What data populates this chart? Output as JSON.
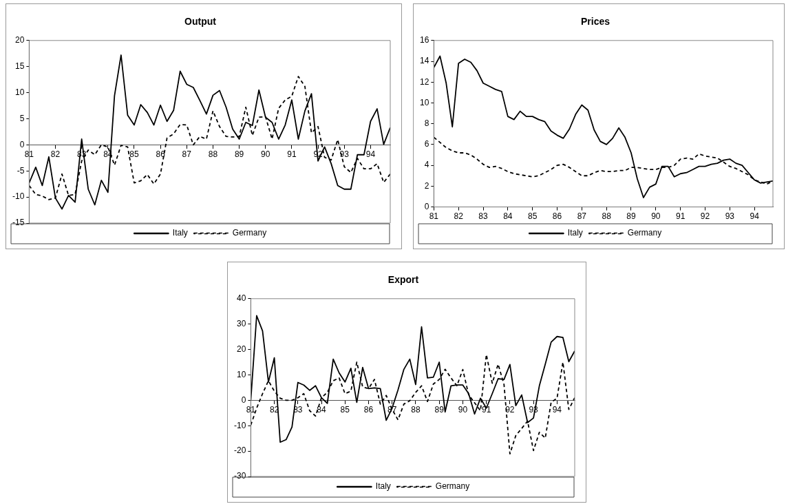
{
  "chart_data": [
    {
      "type": "line",
      "title": "Output",
      "x": [
        81,
        81.25,
        81.5,
        81.75,
        82,
        82.25,
        82.5,
        82.75,
        83,
        83.25,
        83.5,
        83.75,
        84,
        84.25,
        84.5,
        84.75,
        85,
        85.25,
        85.5,
        85.75,
        86,
        86.25,
        86.5,
        86.75,
        87,
        87.25,
        87.5,
        87.75,
        88,
        88.25,
        88.5,
        88.75,
        89,
        89.25,
        89.5,
        89.75,
        90,
        90.25,
        90.5,
        90.75,
        91,
        91.25,
        91.5,
        91.75,
        92,
        92.25,
        92.5,
        92.75,
        93,
        93.25,
        93.5,
        93.75,
        94,
        94.25,
        94.5,
        94.75
      ],
      "xlim": [
        81,
        94.75
      ],
      "xticks": [
        81,
        82,
        83,
        84,
        85,
        86,
        87,
        88,
        89,
        90,
        91,
        92,
        93,
        94
      ],
      "ylim": [
        -15,
        20
      ],
      "yticks": [
        -15,
        -10,
        -5,
        0,
        5,
        10,
        15,
        20
      ],
      "grid": false,
      "legend": "bottom",
      "marker": "none",
      "series": [
        {
          "name": "Italy",
          "color": "#000000",
          "line_style": "solid",
          "values": [
            -7.3,
            -4.3,
            -7.8,
            -2.3,
            -10.2,
            -12.3,
            -9.7,
            -11,
            1.1,
            -8.5,
            -11.5,
            -6.8,
            -9.1,
            9.4,
            17.2,
            5.7,
            3.8,
            7.7,
            6.2,
            3.8,
            7.6,
            4.5,
            6.6,
            14.1,
            11.6,
            11,
            8.5,
            5.9,
            9.5,
            10.4,
            7.2,
            3.0,
            1.1,
            4.3,
            3.7,
            10.5,
            5.3,
            4.3,
            1.1,
            3.8,
            8.6,
            1.1,
            6.5,
            9.8,
            -3.1,
            -0.4,
            -3.6,
            -7.8,
            -8.5,
            -8.5,
            -1.9,
            -1.9,
            4.5,
            6.9,
            0.1,
            3.3
          ]
        },
        {
          "name": "Germany",
          "color": "#000000",
          "line_style": "dashed",
          "values": [
            -7.8,
            -9.5,
            -9.8,
            -10.5,
            -10.2,
            -5.6,
            -9.7,
            -9.5,
            -3.1,
            -1,
            -1.9,
            0,
            -0.4,
            -3.9,
            -0.1,
            -0.4,
            -7.3,
            -6.9,
            -5.7,
            -7.5,
            -5.6,
            1.3,
            2.1,
            3.9,
            3.8,
            0,
            1.6,
            1.1,
            6.5,
            3.5,
            1.6,
            1.5,
            1.6,
            7.2,
            1.8,
            5.3,
            5.4,
            1.1,
            7.0,
            8.6,
            9.3,
            13.1,
            11.2,
            2.3,
            3.5,
            -2.4,
            -2.9,
            1.0,
            -4.2,
            -5.3,
            -2.6,
            -4.6,
            -4.6,
            -3.6,
            -7.2,
            -5.6
          ]
        }
      ]
    },
    {
      "type": "line",
      "title": "Prices",
      "x": [
        81,
        81.25,
        81.5,
        81.75,
        82,
        82.25,
        82.5,
        82.75,
        83,
        83.25,
        83.5,
        83.75,
        84,
        84.25,
        84.5,
        84.75,
        85,
        85.25,
        85.5,
        85.75,
        86,
        86.25,
        86.5,
        86.75,
        87,
        87.25,
        87.5,
        87.75,
        88,
        88.25,
        88.5,
        88.75,
        89,
        89.25,
        89.5,
        89.75,
        90,
        90.25,
        90.5,
        90.75,
        91,
        91.25,
        91.5,
        91.75,
        92,
        92.25,
        92.5,
        92.75,
        93,
        93.25,
        93.5,
        93.75,
        94,
        94.25,
        94.5,
        94.75
      ],
      "xlim": [
        81,
        94.75
      ],
      "xticks": [
        81,
        82,
        83,
        84,
        85,
        86,
        87,
        88,
        89,
        90,
        91,
        92,
        93,
        94
      ],
      "ylim": [
        0,
        16
      ],
      "yticks": [
        0,
        2,
        4,
        6,
        8,
        10,
        12,
        14,
        16
      ],
      "grid": false,
      "legend": "bottom",
      "marker": "none",
      "series": [
        {
          "name": "Italy",
          "color": "#000000",
          "line_style": "solid",
          "values": [
            13.4,
            14.5,
            11.9,
            7.7,
            13.8,
            14.2,
            13.9,
            13.1,
            11.9,
            11.6,
            11.3,
            11.1,
            8.7,
            8.4,
            9.2,
            8.7,
            8.7,
            8.4,
            8.2,
            7.3,
            6.9,
            6.6,
            7.5,
            8.9,
            9.8,
            9.3,
            7.4,
            6.3,
            6.0,
            6.6,
            7.6,
            6.7,
            5.2,
            2.7,
            0.9,
            1.9,
            2.2,
            3.9,
            3.9,
            2.9,
            3.2,
            3.3,
            3.6,
            3.9,
            3.9,
            4.1,
            4.2,
            4.5,
            4.6,
            4.2,
            4.0,
            3.3,
            2.6,
            2.3,
            2.4,
            2.5
          ]
        },
        {
          "name": "Germany",
          "color": "#000000",
          "line_style": "dashed",
          "values": [
            6.7,
            6.2,
            5.7,
            5.4,
            5.2,
            5.2,
            5.0,
            4.6,
            4.1,
            3.8,
            3.9,
            3.7,
            3.4,
            3.2,
            3.1,
            3.0,
            2.9,
            3.0,
            3.3,
            3.6,
            4.0,
            4.1,
            3.8,
            3.4,
            3.0,
            3.0,
            3.3,
            3.5,
            3.4,
            3.4,
            3.5,
            3.5,
            3.8,
            3.8,
            3.7,
            3.6,
            3.6,
            3.8,
            3.8,
            4.0,
            4.6,
            4.7,
            4.6,
            5.1,
            4.9,
            4.8,
            4.7,
            4.3,
            3.9,
            3.7,
            3.4,
            3.1,
            2.6,
            2.4,
            2.2,
            2.5
          ]
        }
      ]
    },
    {
      "type": "line",
      "title": "Export",
      "x": [
        81,
        81.25,
        81.5,
        81.75,
        82,
        82.25,
        82.5,
        82.75,
        83,
        83.25,
        83.5,
        83.75,
        84,
        84.25,
        84.5,
        84.75,
        85,
        85.25,
        85.5,
        85.75,
        86,
        86.25,
        86.5,
        86.75,
        87,
        87.25,
        87.5,
        87.75,
        88,
        88.25,
        88.5,
        88.75,
        89,
        89.25,
        89.5,
        89.75,
        90,
        90.25,
        90.5,
        90.75,
        91,
        91.25,
        91.5,
        91.75,
        92,
        92.25,
        92.5,
        92.75,
        93,
        93.25,
        93.5,
        93.75,
        94,
        94.25,
        94.5,
        94.75
      ],
      "xlim": [
        81,
        94.75
      ],
      "xticks": [
        81,
        82,
        83,
        84,
        85,
        86,
        87,
        88,
        89,
        90,
        91,
        92,
        93,
        94
      ],
      "ylim": [
        -30,
        40
      ],
      "yticks": [
        -30,
        -20,
        -10,
        0,
        10,
        20,
        30,
        40
      ],
      "grid": false,
      "legend": "bottom",
      "marker": "none",
      "series": [
        {
          "name": "Italy",
          "color": "#000000",
          "line_style": "solid",
          "values": [
            0,
            33.3,
            27.3,
            7.2,
            16.7,
            -16.5,
            -15.5,
            -10.5,
            7.0,
            6.0,
            3.9,
            5.7,
            1.0,
            -1.2,
            16.2,
            10.8,
            7.2,
            12.6,
            -0.8,
            12.9,
            4.6,
            4.9,
            4.6,
            -7.9,
            -3.1,
            4.1,
            12.2,
            16.2,
            6.2,
            28.9,
            8.8,
            9.1,
            15.0,
            -4.6,
            5.7,
            6.0,
            6.0,
            2.6,
            -5.4,
            0.8,
            -3.1,
            2.6,
            8.5,
            8.2,
            14.1,
            -2.1,
            2.1,
            -8.8,
            -7.0,
            5.7,
            14.2,
            22.9,
            25.1,
            24.7,
            15.2,
            19.4
          ]
        },
        {
          "name": "Germany",
          "color": "#000000",
          "line_style": "dashed",
          "values": [
            -9.8,
            -3.1,
            2.6,
            7.7,
            3.6,
            0.8,
            0,
            0,
            1.0,
            2.6,
            -4.1,
            -6.2,
            1.0,
            3.1,
            7.7,
            8.8,
            2.6,
            3.6,
            15.0,
            5.2,
            4.6,
            8.2,
            -1.5,
            1.9,
            -3.6,
            -7.7,
            -1.5,
            -0.2,
            3.1,
            5.7,
            -0.5,
            6.4,
            8.2,
            12.2,
            8.8,
            5.7,
            12.1,
            2.1,
            -1.0,
            -4.1,
            18.0,
            6.7,
            14.2,
            6.2,
            -21.1,
            -13.9,
            -11.1,
            -8.2,
            -19.8,
            -12.6,
            -14.9,
            -0.8,
            0.8,
            15.0,
            -3.6,
            1.0
          ]
        }
      ]
    }
  ]
}
